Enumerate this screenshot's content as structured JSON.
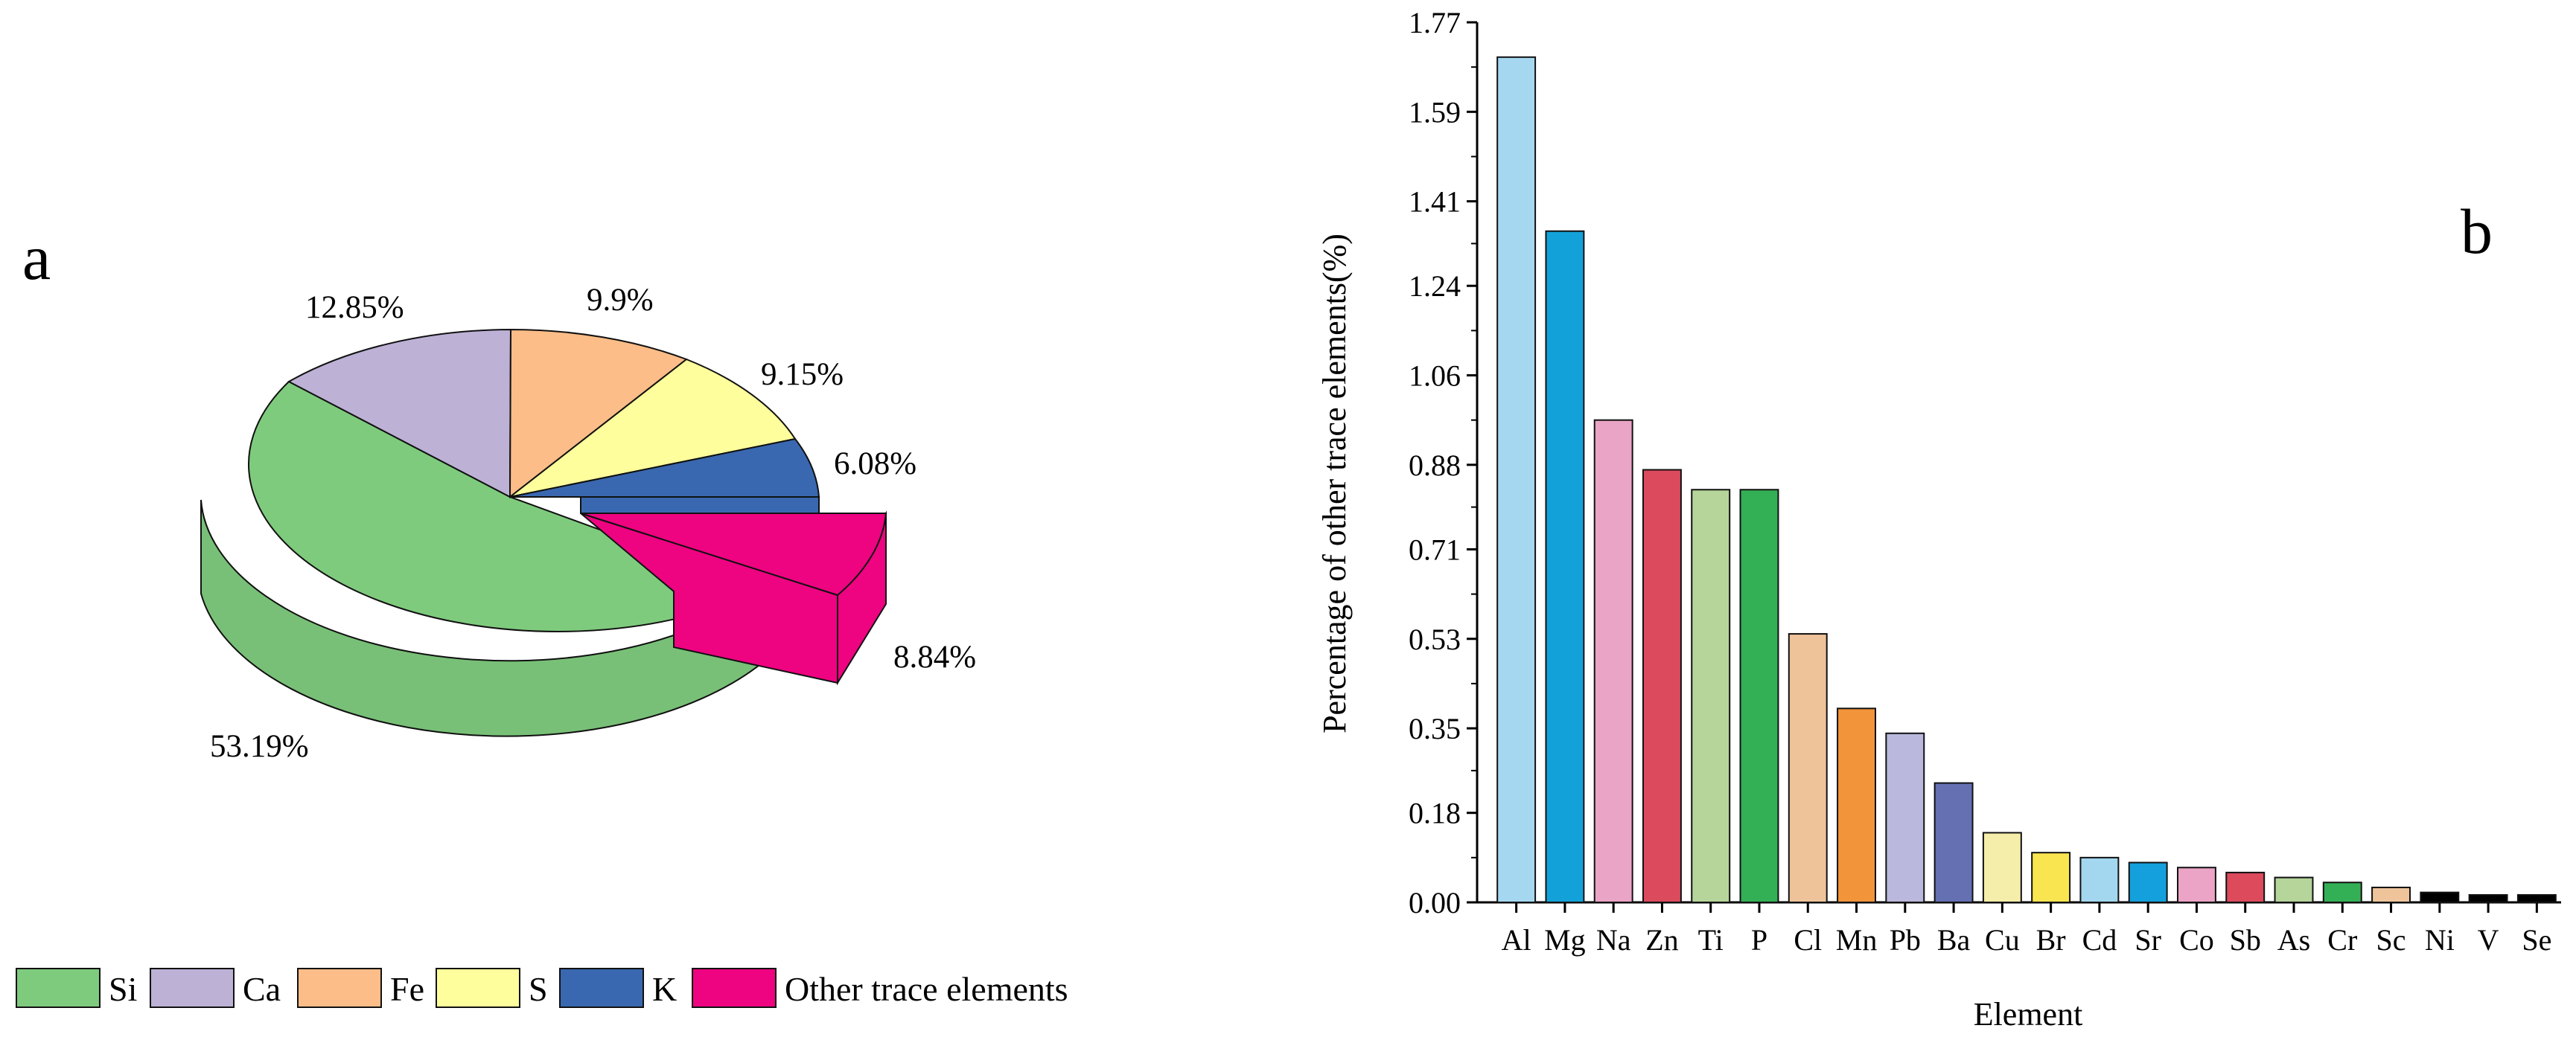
{
  "chart_data": [
    {
      "type": "pie",
      "panel_label": "a",
      "slices": [
        {
          "label": "Si",
          "value": 53.19,
          "value_label": "53.19%",
          "color": "#7fcb7e"
        },
        {
          "label": "Ca",
          "value": 12.85,
          "value_label": "12.85%",
          "color": "#bdb1d6"
        },
        {
          "label": "Fe",
          "value": 9.9,
          "value_label": "9.9%",
          "color": "#fcbd88"
        },
        {
          "label": "S",
          "value": 9.15,
          "value_label": "9.15%",
          "color": "#feff9c"
        },
        {
          "label": "K",
          "value": 6.08,
          "value_label": "6.08%",
          "color": "#3a68b0"
        },
        {
          "label": "Other trace elements",
          "value": 8.84,
          "value_label": "8.84%",
          "color": "#ee0381",
          "exploded": true
        }
      ],
      "style": "3D exploded pie",
      "legend": "bottom"
    },
    {
      "type": "bar",
      "panel_label": "b",
      "xlabel": "Element",
      "ylabel": "Percentage of other trace elements(%)",
      "ylim": [
        0,
        1.77
      ],
      "yticks": [
        "0.00",
        "0.18",
        "0.35",
        "0.53",
        "0.71",
        "0.88",
        "1.06",
        "1.24",
        "1.41",
        "1.59",
        "1.77"
      ],
      "categories": [
        "Al",
        "Mg",
        "Na",
        "Zn",
        "Ti",
        "P",
        "Cl",
        "Mn",
        "Pb",
        "Ba",
        "Cu",
        "Br",
        "Cd",
        "Sr",
        "Co",
        "Sb",
        "As",
        "Cr",
        "Sc",
        "Ni",
        "V",
        "Se"
      ],
      "values": [
        1.7,
        1.35,
        0.97,
        0.87,
        0.83,
        0.83,
        0.54,
        0.39,
        0.34,
        0.24,
        0.14,
        0.1,
        0.09,
        0.08,
        0.07,
        0.06,
        0.05,
        0.04,
        0.03,
        0.02,
        0.015,
        0.015
      ],
      "colors": [
        "#a5d8f0",
        "#12a2d9",
        "#eaa4c6",
        "#dc4a5d",
        "#b6d59b",
        "#33b056",
        "#eec39a",
        "#f1943a",
        "#bab8dc",
        "#6470b1",
        "#f5edaa",
        "#f9e54f",
        "#a3d7ef",
        "#14a0dc",
        "#eba4c6",
        "#dc4a5c",
        "#b5d59b",
        "#33b056",
        "#efc49b",
        "#000000",
        "#000000",
        "#000000"
      ]
    }
  ]
}
